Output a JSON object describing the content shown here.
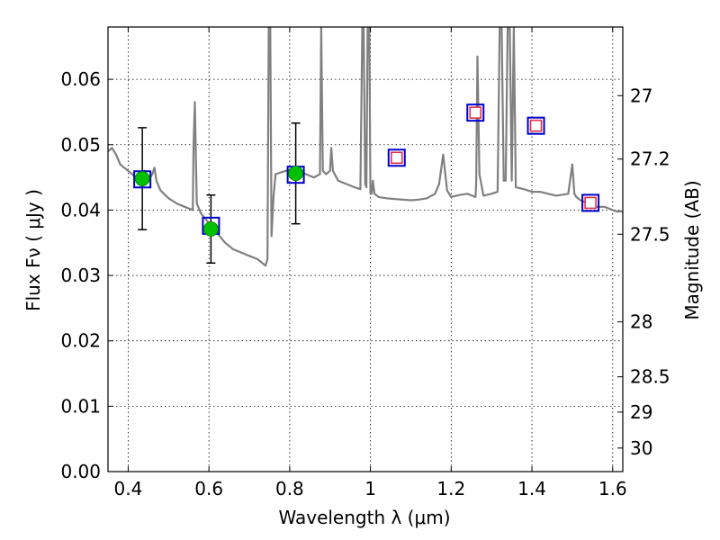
{
  "chart_data": {
    "type": "scatter",
    "title": "",
    "xlabel": "Wavelength  λ (μm)",
    "ylabel": "Flux  Fν  ( μJy )",
    "y2label": "Magnitude (AB)",
    "xlim": [
      0.35,
      1.625
    ],
    "ylim": [
      0.0,
      0.068
    ],
    "grid": true,
    "x_ticks": [
      0.4,
      0.6,
      0.8,
      1.0,
      1.2,
      1.4,
      1.6
    ],
    "x_tick_labels": [
      "0.4",
      "0.6",
      "0.8",
      "1",
      "1.2",
      "1.4",
      "1.6"
    ],
    "y_ticks": [
      0.0,
      0.01,
      0.02,
      0.03,
      0.04,
      0.05,
      0.06
    ],
    "y_tick_labels": [
      "0.00",
      "0.01",
      "0.02",
      "0.03",
      "0.04",
      "0.05",
      "0.06"
    ],
    "y2_ticks": [
      {
        "label": "27",
        "flux": 0.0575
      },
      {
        "label": "27.2",
        "flux": 0.0478
      },
      {
        "label": "27.5",
        "flux": 0.0363
      },
      {
        "label": "28",
        "flux": 0.0229
      },
      {
        "label": "28.5",
        "flux": 0.0145
      },
      {
        "label": "29",
        "flux": 0.0091
      },
      {
        "label": "30",
        "flux": 0.0036
      }
    ],
    "series": [
      {
        "kind": "line",
        "color": "#808080",
        "x": [
          0.35,
          0.36,
          0.37,
          0.38,
          0.39,
          0.4,
          0.41,
          0.42,
          0.43,
          0.44,
          0.45,
          0.46,
          0.465,
          0.47,
          0.48,
          0.5,
          0.52,
          0.54,
          0.56,
          0.562,
          0.565,
          0.568,
          0.57,
          0.58,
          0.6,
          0.62,
          0.64,
          0.66,
          0.68,
          0.7,
          0.72,
          0.73,
          0.74,
          0.745,
          0.748,
          0.752,
          0.755,
          0.76,
          0.765,
          0.78,
          0.8,
          0.82,
          0.84,
          0.86,
          0.875,
          0.878,
          0.882,
          0.89,
          0.9,
          0.903,
          0.907,
          0.92,
          0.94,
          0.96,
          0.975,
          0.98,
          0.983,
          0.987,
          0.99,
          0.993,
          0.997,
          1.0,
          1.003,
          1.006,
          1.01,
          1.02,
          1.04,
          1.06,
          1.08,
          1.1,
          1.12,
          1.14,
          1.16,
          1.17,
          1.18,
          1.19,
          1.2,
          1.22,
          1.24,
          1.26,
          1.262,
          1.265,
          1.27,
          1.28,
          1.3,
          1.315,
          1.32,
          1.325,
          1.33,
          1.335,
          1.34,
          1.345,
          1.35,
          1.355,
          1.36,
          1.38,
          1.4,
          1.42,
          1.44,
          1.46,
          1.49,
          1.5,
          1.505,
          1.51,
          1.52,
          1.54,
          1.56,
          1.58,
          1.6,
          1.61,
          1.625
        ],
        "y": [
          0.049,
          0.0495,
          0.0485,
          0.047,
          0.0465,
          0.046,
          0.0455,
          0.045,
          0.0452,
          0.046,
          0.0445,
          0.0455,
          0.0465,
          0.0445,
          0.043,
          0.0418,
          0.041,
          0.0405,
          0.04,
          0.05,
          0.0565,
          0.047,
          0.041,
          0.0395,
          0.038,
          0.0365,
          0.035,
          0.034,
          0.0335,
          0.033,
          0.0325,
          0.032,
          0.0315,
          0.0325,
          0.068,
          0.068,
          0.036,
          0.042,
          0.0455,
          0.0458,
          0.0462,
          0.046,
          0.0455,
          0.045,
          0.0455,
          0.068,
          0.046,
          0.0455,
          0.046,
          0.0495,
          0.046,
          0.0445,
          0.044,
          0.0435,
          0.0432,
          0.068,
          0.068,
          0.044,
          0.0435,
          0.068,
          0.068,
          0.0425,
          0.0425,
          0.0445,
          0.0425,
          0.042,
          0.0418,
          0.0417,
          0.0416,
          0.0415,
          0.0416,
          0.0418,
          0.0425,
          0.044,
          0.0485,
          0.043,
          0.042,
          0.0423,
          0.0425,
          0.042,
          0.044,
          0.0635,
          0.0455,
          0.0422,
          0.0425,
          0.0428,
          0.068,
          0.068,
          0.0445,
          0.0445,
          0.068,
          0.068,
          0.0445,
          0.068,
          0.0435,
          0.0432,
          0.0428,
          0.0428,
          0.0425,
          0.0422,
          0.0425,
          0.047,
          0.0425,
          0.042,
          0.0415,
          0.041,
          0.0405,
          0.0405,
          0.04,
          0.0398,
          0.0398
        ]
      },
      {
        "kind": "errorbar",
        "marker": "circle",
        "color": "#00c000",
        "x": [
          0.435,
          0.605,
          0.815
        ],
        "y": [
          0.0448,
          0.0371,
          0.0456
        ],
        "yerr": [
          0.0078,
          0.0052,
          0.0077
        ]
      },
      {
        "kind": "scatter",
        "marker": "square-open",
        "color": "#0000cc",
        "x": [
          0.435,
          0.605,
          0.815,
          1.065,
          1.26,
          1.41,
          1.545
        ],
        "y": [
          0.0447,
          0.0376,
          0.0454,
          0.048,
          0.0549,
          0.0529,
          0.0411
        ]
      },
      {
        "kind": "scatter",
        "marker": "square-open-small",
        "color": "#e0304a",
        "x": [
          1.065,
          1.26,
          1.41,
          1.545
        ],
        "y": [
          0.048,
          0.0549,
          0.0529,
          0.0411
        ]
      }
    ]
  }
}
